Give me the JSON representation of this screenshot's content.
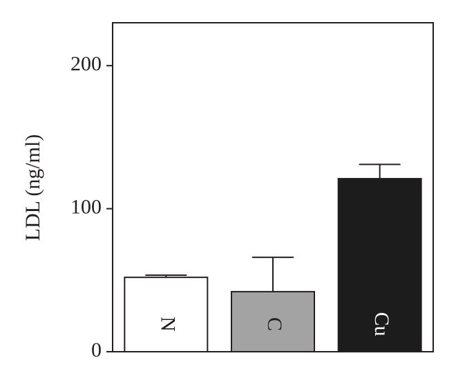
{
  "chart_data": {
    "type": "bar",
    "y_label": "LDL (ng/ml)",
    "categories": [
      "N",
      "C",
      "Cu"
    ],
    "values": [
      52,
      42,
      121
    ],
    "errors": [
      1.5,
      24,
      10
    ],
    "colors": [
      "#ffffff",
      "#a3a3a3",
      "#1c1c1c"
    ],
    "label_colors": [
      "#231f20",
      "#231f20",
      "#ffffff"
    ],
    "ylim": [
      0,
      230
    ],
    "yticks": [
      0,
      100,
      200
    ]
  }
}
